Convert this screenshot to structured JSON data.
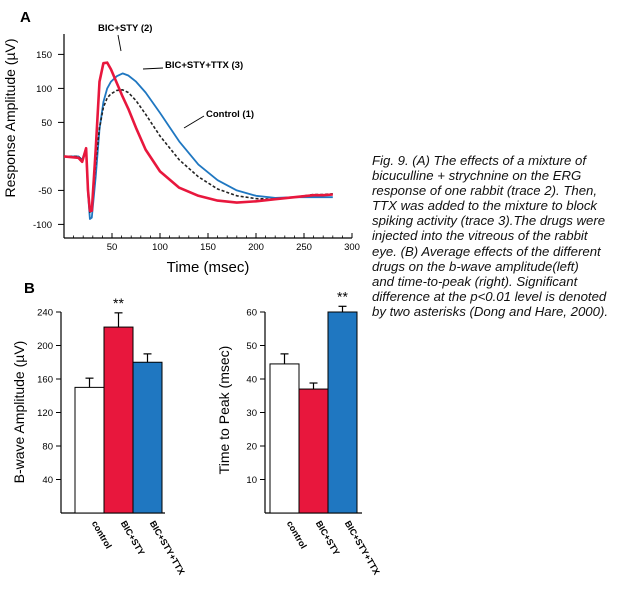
{
  "panel_labels": {
    "a": "A",
    "b": "B"
  },
  "caption_lines": [
    "Fig. 9. (A) The effects of a mixture of",
    "bicuculline + strychnine on the ERG",
    "response of one rabbit (trace 2). Then,",
    "TTX was added to the mixture to block",
    "spiking activity (trace 3).The drugs were",
    "injected into the vitreous of the rabbit",
    "eye. (B) Average effects of the different",
    " drugs on the b-wave amplitude(left)",
    "and time-to-peak (right). Significant",
    " difference at the p<0.01 level is denoted",
    "by two asterisks (Dong and Hare, 2000)."
  ],
  "colors": {
    "control": "#222222",
    "bic_sty": "#e8173d",
    "bic_sty_ttx": "#1f77c1",
    "bar_control": "#ffffff",
    "axis": "#000000"
  },
  "chart_data": [
    {
      "type": "line",
      "xlabel": "Time (msec)",
      "ylabel": "Response Amplitude (µV)",
      "xlim": [
        0,
        300
      ],
      "ylim": [
        -120,
        180
      ],
      "xticks": [
        50,
        100,
        150,
        200,
        250,
        300
      ],
      "yticks": [
        -100,
        -50,
        50,
        100,
        150
      ],
      "series": [
        {
          "name": "Control (1)",
          "color": "#222222",
          "dash": "3,2",
          "x": [
            0,
            15,
            19,
            23,
            25,
            27,
            29,
            33,
            37,
            41,
            45,
            49,
            55,
            61,
            67,
            75,
            85,
            100,
            120,
            140,
            160,
            180,
            200,
            220,
            240,
            260,
            270,
            280
          ],
          "y": [
            0,
            0,
            -6,
            12,
            -48,
            -82,
            -78,
            -10,
            42,
            72,
            86,
            92,
            97,
            98,
            94,
            82,
            62,
            30,
            -5,
            -30,
            -48,
            -58,
            -62,
            -63,
            -60,
            -56,
            -56,
            -55
          ]
        },
        {
          "name": "BIC+STY (2)",
          "color": "#e8173d",
          "dash": "",
          "x": [
            0,
            15,
            19,
            23,
            25,
            27,
            29,
            33,
            37,
            41,
            45,
            49,
            55,
            61,
            67,
            75,
            85,
            100,
            120,
            140,
            160,
            180,
            200,
            220,
            240,
            260,
            270,
            280
          ],
          "y": [
            0,
            -2,
            -8,
            12,
            -50,
            -80,
            -80,
            10,
            110,
            137,
            138,
            128,
            108,
            88,
            70,
            42,
            10,
            -22,
            -46,
            -58,
            -65,
            -68,
            -66,
            -63,
            -60,
            -57,
            -57,
            -56
          ]
        },
        {
          "name": "BIC+STY+TTX (3)",
          "color": "#1f77c1",
          "dash": "",
          "x": [
            0,
            15,
            19,
            23,
            25,
            27,
            29,
            33,
            37,
            41,
            45,
            49,
            55,
            61,
            67,
            75,
            85,
            100,
            120,
            140,
            160,
            180,
            200,
            220,
            240,
            260,
            270,
            280
          ],
          "y": [
            0,
            0,
            -5,
            12,
            -55,
            -92,
            -90,
            -30,
            40,
            80,
            100,
            110,
            118,
            122,
            119,
            110,
            94,
            64,
            22,
            -12,
            -35,
            -50,
            -58,
            -61,
            -60,
            -60,
            -60,
            -60
          ]
        }
      ],
      "labels": [
        "BIC+STY (2)",
        "BIC+STY+TTX (3)",
        "Control (1)"
      ]
    },
    {
      "type": "bar",
      "ylabel": "B-wave Amplitude (µV)",
      "ylim": [
        0,
        240
      ],
      "yticks": [
        40,
        80,
        120,
        160,
        200,
        240
      ],
      "categories": [
        "control",
        "BIC+STY",
        "BIC+STY+TTX"
      ],
      "values": [
        150,
        222,
        180
      ],
      "errors": [
        11,
        17,
        10
      ],
      "colors": [
        "#ffffff",
        "#e8173d",
        "#1f77c1"
      ],
      "significance": [
        "",
        "**",
        ""
      ]
    },
    {
      "type": "bar",
      "ylabel": "Time to Peak (msec)",
      "ylim": [
        0,
        60
      ],
      "yticks": [
        10,
        20,
        30,
        40,
        50,
        60
      ],
      "categories": [
        "control",
        "BIC+STY",
        "BIC+STY+TTX"
      ],
      "values": [
        44.5,
        37,
        60
      ],
      "errors": [
        3,
        1.8,
        1.7
      ],
      "colors": [
        "#ffffff",
        "#e8173d",
        "#1f77c1"
      ],
      "significance": [
        "",
        "",
        "**"
      ]
    }
  ]
}
